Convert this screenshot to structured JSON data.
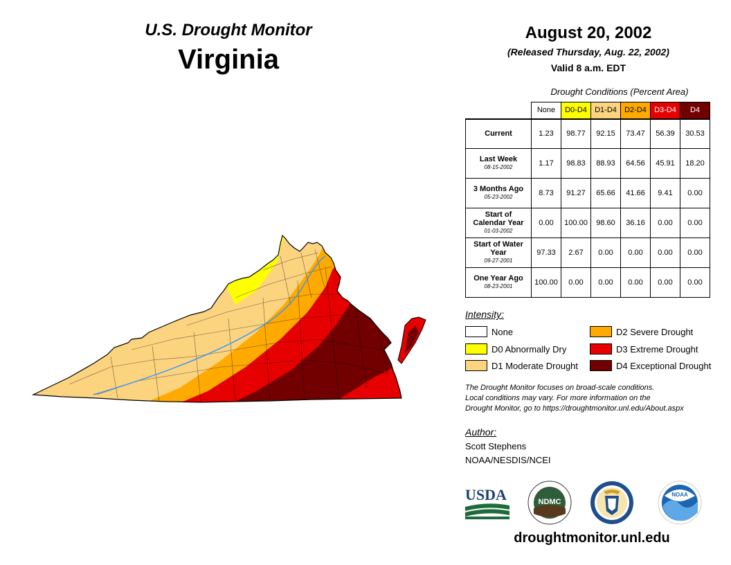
{
  "header": {
    "title": "U.S. Drought Monitor",
    "region": "Virginia",
    "date": "August 20, 2002",
    "released": "(Released Thursday, Aug. 22, 2002)",
    "valid": "Valid 8 a.m. EDT"
  },
  "table": {
    "caption": "Drought Conditions (Percent Area)",
    "columns": [
      "None",
      "D0-D4",
      "D1-D4",
      "D2-D4",
      "D3-D4",
      "D4"
    ],
    "column_colors": [
      "#ffffff",
      "#ffff00",
      "#fcd37f",
      "#ffaa00",
      "#e60000",
      "#730000"
    ],
    "rows": [
      {
        "label": "Current",
        "sub": "",
        "values": [
          "1.23",
          "98.77",
          "92.15",
          "73.47",
          "56.39",
          "30.53"
        ]
      },
      {
        "label": "Last Week",
        "sub": "08-15-2002",
        "values": [
          "1.17",
          "98.83",
          "88.93",
          "64.56",
          "45.91",
          "18.20"
        ]
      },
      {
        "label": "3 Months Ago",
        "sub": "05-23-2002",
        "values": [
          "8.73",
          "91.27",
          "65.66",
          "41.66",
          "9.41",
          "0.00"
        ]
      },
      {
        "label": "Start of Calendar Year",
        "sub": "01-03-2002",
        "values": [
          "0.00",
          "100.00",
          "98.60",
          "36.16",
          "0.00",
          "0.00"
        ]
      },
      {
        "label": "Start of Water Year",
        "sub": "09-27-2001",
        "values": [
          "97.33",
          "2.67",
          "0.00",
          "0.00",
          "0.00",
          "0.00"
        ]
      },
      {
        "label": "One Year Ago",
        "sub": "08-23-2001",
        "values": [
          "100.00",
          "0.00",
          "0.00",
          "0.00",
          "0.00",
          "0.00"
        ]
      }
    ]
  },
  "legend": {
    "title": "Intensity:",
    "items": [
      {
        "label": "None",
        "color": "#ffffff"
      },
      {
        "label": "D0 Abnormally Dry",
        "color": "#ffff00"
      },
      {
        "label": "D1 Moderate Drought",
        "color": "#fcd37f"
      },
      {
        "label": "D2 Severe Drought",
        "color": "#ffaa00"
      },
      {
        "label": "D3 Extreme Drought",
        "color": "#e60000"
      },
      {
        "label": "D4 Exceptional Drought",
        "color": "#730000"
      }
    ]
  },
  "note": {
    "line1": "The Drought Monitor focuses on broad-scale conditions.",
    "line2": "Local conditions may vary. For more information on the",
    "line3": "Drought Monitor, go to https://droughtmonitor.unl.edu/About.aspx"
  },
  "author": {
    "label": "Author:",
    "name": "Scott Stephens",
    "org": "NOAA/NESDIS/NCEI"
  },
  "logos": {
    "usda": "USDA",
    "ndmc": "NDMC",
    "noaa": "NOAA"
  },
  "website": "droughtmonitor.unl.edu"
}
